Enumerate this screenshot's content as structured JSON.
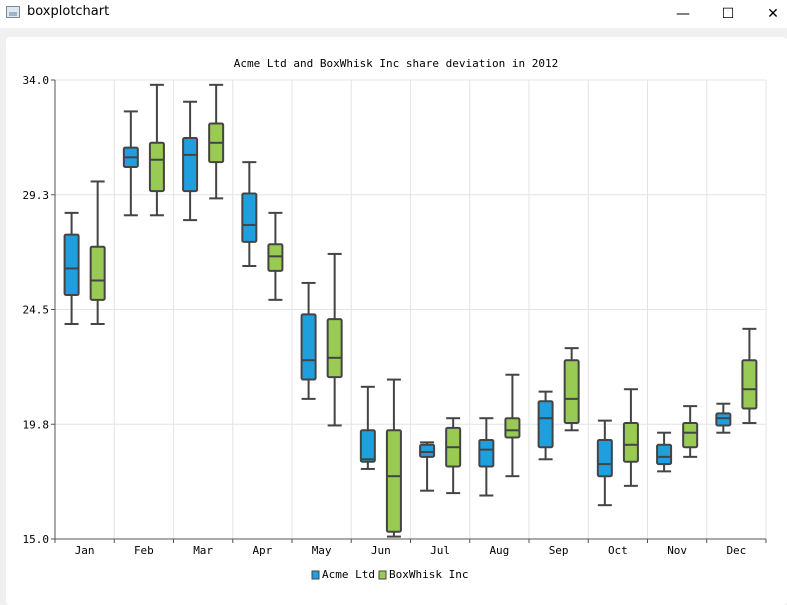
{
  "window": {
    "title": "boxplotchart",
    "minimize_glyph": "—",
    "maximize_glyph": "☐",
    "close_glyph": "✕"
  },
  "chart_data": {
    "type": "boxplot",
    "title": "Acme Ltd and BoxWhisk Inc share deviation in 2012",
    "categories": [
      "Jan",
      "Feb",
      "Mar",
      "Apr",
      "May",
      "Jun",
      "Jul",
      "Aug",
      "Sep",
      "Oct",
      "Nov",
      "Dec"
    ],
    "y_ticks": [
      "15.0",
      "19.8",
      "24.5",
      "29.3",
      "34.0"
    ],
    "ylim": [
      15.0,
      34.0
    ],
    "legend_position": "bottom",
    "series": [
      {
        "name": "Acme Ltd",
        "color": "#209fdf",
        "boxes": [
          {
            "min": 23.9,
            "q1": 25.1,
            "median": 26.2,
            "q3": 27.6,
            "max": 28.5
          },
          {
            "min": 28.4,
            "q1": 30.4,
            "median": 30.8,
            "q3": 31.2,
            "max": 32.7
          },
          {
            "min": 28.2,
            "q1": 29.4,
            "median": 30.9,
            "q3": 31.6,
            "max": 33.1
          },
          {
            "min": 26.3,
            "q1": 27.3,
            "median": 28.0,
            "q3": 29.3,
            "max": 30.6
          },
          {
            "min": 20.8,
            "q1": 21.6,
            "median": 22.4,
            "q3": 24.3,
            "max": 25.6
          },
          {
            "min": 17.9,
            "q1": 18.2,
            "median": 18.3,
            "q3": 19.5,
            "max": 21.3
          },
          {
            "min": 17.0,
            "q1": 18.4,
            "median": 18.6,
            "q3": 18.9,
            "max": 19.0
          },
          {
            "min": 16.8,
            "q1": 18.0,
            "median": 18.7,
            "q3": 19.1,
            "max": 20.0
          },
          {
            "min": 18.3,
            "q1": 18.8,
            "median": 20.0,
            "q3": 20.7,
            "max": 21.1
          },
          {
            "min": 16.4,
            "q1": 17.6,
            "median": 18.1,
            "q3": 19.1,
            "max": 19.9
          },
          {
            "min": 17.8,
            "q1": 18.1,
            "median": 18.4,
            "q3": 18.9,
            "max": 19.4
          },
          {
            "min": 19.4,
            "q1": 19.7,
            "median": 20.0,
            "q3": 20.2,
            "max": 20.6
          }
        ]
      },
      {
        "name": "BoxWhisk Inc",
        "color": "#99ca53",
        "boxes": [
          {
            "min": 23.9,
            "q1": 24.9,
            "median": 25.7,
            "q3": 27.1,
            "max": 29.8
          },
          {
            "min": 28.4,
            "q1": 29.4,
            "median": 30.7,
            "q3": 31.4,
            "max": 33.8
          },
          {
            "min": 29.1,
            "q1": 30.6,
            "median": 31.4,
            "q3": 32.2,
            "max": 33.8
          },
          {
            "min": 24.9,
            "q1": 26.1,
            "median": 26.7,
            "q3": 27.2,
            "max": 28.5
          },
          {
            "min": 19.7,
            "q1": 21.7,
            "median": 22.5,
            "q3": 24.1,
            "max": 26.8
          },
          {
            "min": 15.1,
            "q1": 15.3,
            "median": 17.6,
            "q3": 19.5,
            "max": 21.6
          },
          {
            "min": 16.9,
            "q1": 18.0,
            "median": 18.8,
            "q3": 19.6,
            "max": 20.0
          },
          {
            "min": 17.6,
            "q1": 19.2,
            "median": 19.5,
            "q3": 20.0,
            "max": 21.8
          },
          {
            "min": 19.5,
            "q1": 19.8,
            "median": 20.8,
            "q3": 22.4,
            "max": 22.9
          },
          {
            "min": 17.2,
            "q1": 18.2,
            "median": 18.9,
            "q3": 19.8,
            "max": 21.2
          },
          {
            "min": 18.4,
            "q1": 18.8,
            "median": 19.4,
            "q3": 19.8,
            "max": 20.5
          },
          {
            "min": 19.8,
            "q1": 20.4,
            "median": 21.2,
            "q3": 22.4,
            "max": 23.7
          }
        ]
      }
    ]
  }
}
